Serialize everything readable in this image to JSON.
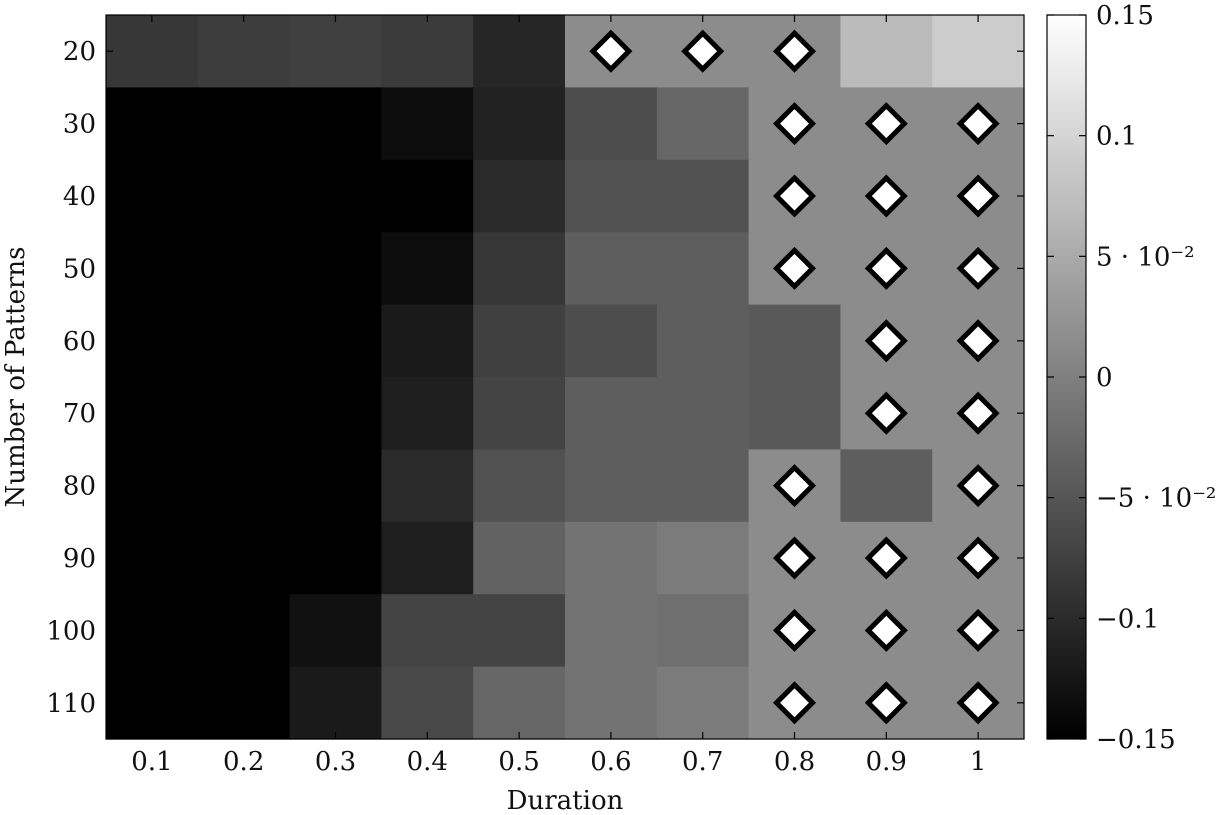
{
  "chart_data": {
    "type": "heatmap",
    "xlabel": "Duration",
    "ylabel": "Number of Patterns",
    "x_ticks": [
      "0.1",
      "0.2",
      "0.3",
      "0.4",
      "0.5",
      "0.6",
      "0.7",
      "0.8",
      "0.9",
      "1"
    ],
    "y_ticks": [
      "20",
      "30",
      "40",
      "50",
      "60",
      "70",
      "80",
      "90",
      "100",
      "110"
    ],
    "colormap": "grayscale",
    "colorbar": {
      "range": [
        -0.15,
        0.15
      ],
      "tick_labels": [
        "0.15",
        "0.1",
        "5 · 10⁻²",
        "0",
        "−5 · 10⁻²",
        "−0.1",
        "−0.15"
      ]
    },
    "values": [
      [
        -0.085,
        -0.078,
        -0.075,
        -0.08,
        -0.105,
        0.015,
        0.015,
        0.015,
        0.07,
        0.09
      ],
      [
        -0.15,
        -0.15,
        -0.15,
        -0.135,
        -0.11,
        -0.06,
        -0.03,
        0.015,
        0.015,
        0.015
      ],
      [
        -0.15,
        -0.15,
        -0.15,
        -0.15,
        -0.1,
        -0.055,
        -0.055,
        0.015,
        0.015,
        0.015
      ],
      [
        -0.15,
        -0.15,
        -0.15,
        -0.135,
        -0.085,
        -0.04,
        -0.04,
        0.015,
        0.015,
        0.015
      ],
      [
        -0.15,
        -0.15,
        -0.15,
        -0.12,
        -0.075,
        -0.06,
        -0.04,
        -0.045,
        0.015,
        0.015
      ],
      [
        -0.15,
        -0.15,
        -0.15,
        -0.115,
        -0.07,
        -0.04,
        -0.04,
        -0.045,
        0.015,
        0.015
      ],
      [
        -0.15,
        -0.15,
        -0.15,
        -0.1,
        -0.055,
        -0.04,
        -0.04,
        0.015,
        -0.04,
        0.015
      ],
      [
        -0.15,
        -0.15,
        -0.15,
        -0.115,
        -0.035,
        -0.015,
        -0.005,
        0.015,
        0.015,
        0.015
      ],
      [
        -0.15,
        -0.15,
        -0.13,
        -0.07,
        -0.07,
        -0.015,
        -0.02,
        0.015,
        0.015,
        0.015
      ],
      [
        -0.15,
        -0.15,
        -0.12,
        -0.065,
        -0.03,
        -0.015,
        -0.005,
        0.015,
        0.015,
        0.015
      ]
    ],
    "markers": {
      "shape": "diamond",
      "cells": [
        [
          0,
          5
        ],
        [
          0,
          6
        ],
        [
          0,
          7
        ],
        [
          1,
          7
        ],
        [
          1,
          8
        ],
        [
          1,
          9
        ],
        [
          2,
          7
        ],
        [
          2,
          8
        ],
        [
          2,
          9
        ],
        [
          3,
          7
        ],
        [
          3,
          8
        ],
        [
          3,
          9
        ],
        [
          4,
          8
        ],
        [
          4,
          9
        ],
        [
          5,
          8
        ],
        [
          5,
          9
        ],
        [
          6,
          7
        ],
        [
          6,
          9
        ],
        [
          7,
          7
        ],
        [
          7,
          8
        ],
        [
          7,
          9
        ],
        [
          8,
          7
        ],
        [
          8,
          8
        ],
        [
          8,
          9
        ],
        [
          9,
          7
        ],
        [
          9,
          8
        ],
        [
          9,
          9
        ]
      ]
    },
    "grid": false,
    "legend": "none"
  }
}
